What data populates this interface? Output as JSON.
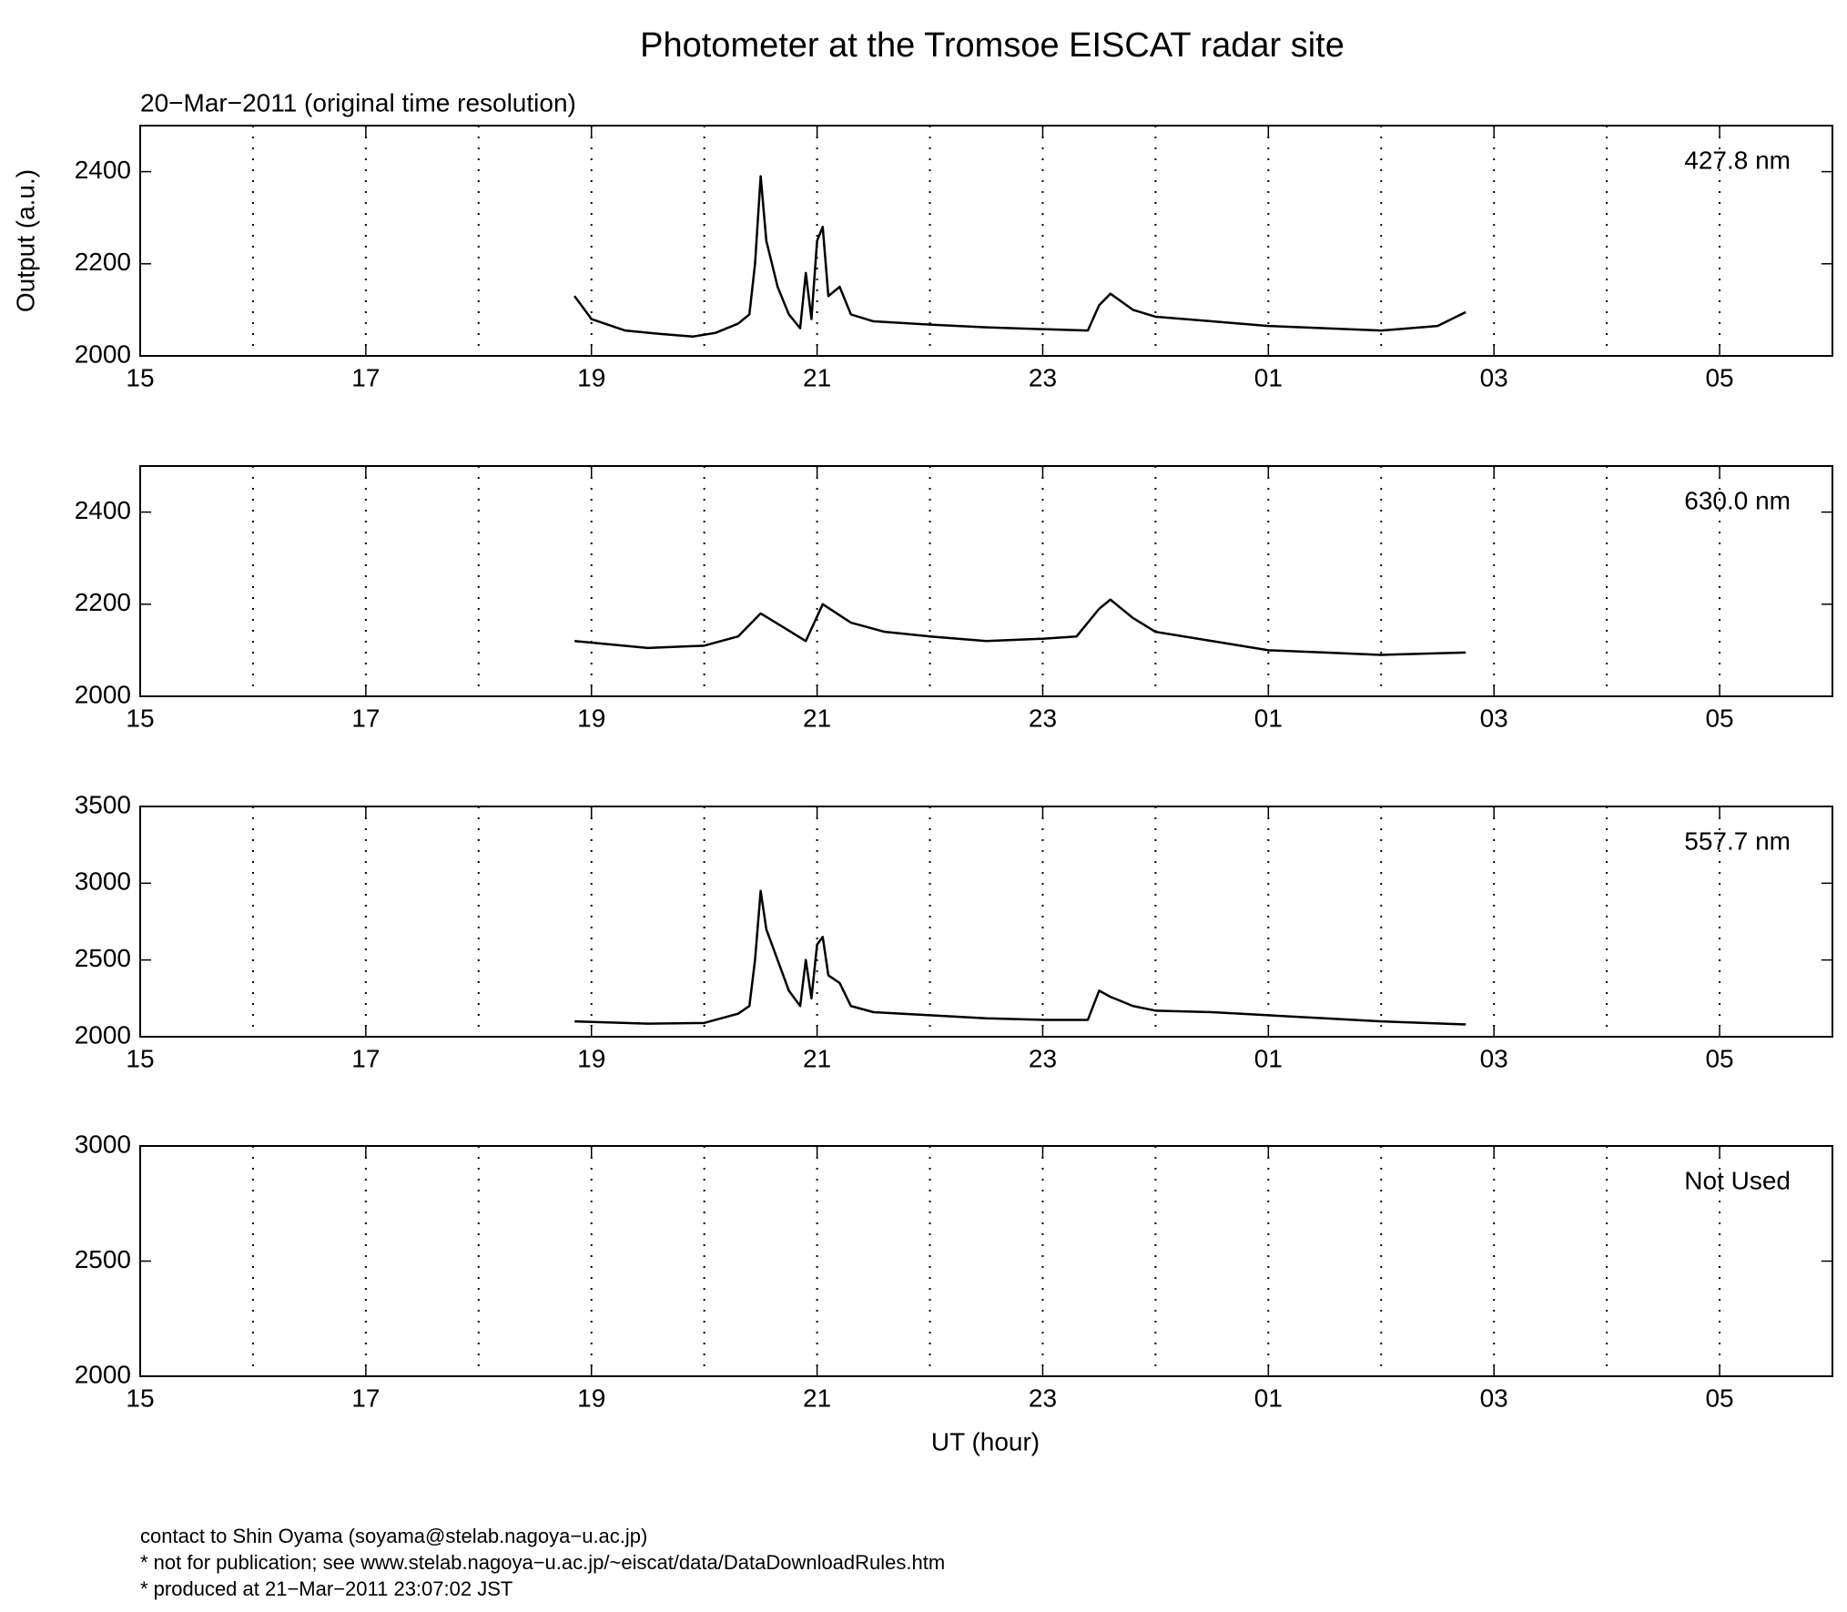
{
  "title": "Photometer at the Tromsoe EISCAT radar site",
  "subtitle": "20−Mar−2011 (original time resolution)",
  "footer": [
    "contact to Shin Oyama (soyama@stelab.nagoya−u.ac.jp)",
    "* not for publication; see www.stelab.nagoya−u.ac.jp/~eiscat/data/DataDownloadRules.htm",
    "* produced at 21−Mar−2011 23:07:02 JST"
  ],
  "chart_data": [
    {
      "type": "line",
      "ylabel": "Output (a.u.)",
      "annotation": "427.8 nm",
      "xlim": [
        15,
        30
      ],
      "xticks": [
        15,
        17,
        19,
        21,
        23,
        {
          "value": 25,
          "label": "01"
        },
        {
          "value": 27,
          "label": "03"
        },
        {
          "value": 29,
          "label": "05"
        }
      ],
      "xgrid": [
        16,
        17,
        18,
        19,
        20,
        21,
        22,
        23,
        24,
        25,
        26,
        27,
        28,
        29
      ],
      "grid_style": "dotted",
      "ylim": [
        2000,
        2500
      ],
      "yticks": [
        2000,
        2200,
        2400
      ],
      "series": [
        {
          "color": "#000000",
          "x": [
            18.85,
            19.0,
            19.3,
            19.6,
            19.9,
            20.1,
            20.3,
            20.4,
            20.45,
            20.5,
            20.55,
            20.65,
            20.75,
            20.85,
            20.9,
            20.95,
            21.0,
            21.05,
            21.1,
            21.2,
            21.3,
            21.5,
            22.0,
            22.5,
            23.0,
            23.4,
            23.5,
            23.6,
            23.8,
            24.0,
            24.5,
            25.0,
            25.5,
            26.0,
            26.5,
            26.75
          ],
          "values": [
            2130,
            2080,
            2055,
            2048,
            2042,
            2050,
            2070,
            2090,
            2200,
            2390,
            2250,
            2150,
            2090,
            2060,
            2180,
            2080,
            2250,
            2280,
            2130,
            2150,
            2090,
            2075,
            2068,
            2062,
            2058,
            2055,
            2110,
            2135,
            2100,
            2085,
            2075,
            2065,
            2060,
            2055,
            2065,
            2095
          ]
        }
      ]
    },
    {
      "type": "line",
      "annotation": "630.0 nm",
      "xlim": [
        15,
        30
      ],
      "xticks": [
        15,
        17,
        19,
        21,
        23,
        {
          "value": 25,
          "label": "01"
        },
        {
          "value": 27,
          "label": "03"
        },
        {
          "value": 29,
          "label": "05"
        }
      ],
      "xgrid": [
        16,
        17,
        18,
        19,
        20,
        21,
        22,
        23,
        24,
        25,
        26,
        27,
        28,
        29
      ],
      "grid_style": "dotted",
      "ylim": [
        2000,
        2500
      ],
      "yticks": [
        2000,
        2200,
        2400
      ],
      "series": [
        {
          "color": "#000000",
          "x": [
            18.85,
            19.5,
            20.0,
            20.3,
            20.5,
            20.7,
            20.9,
            21.05,
            21.3,
            21.6,
            22.0,
            22.5,
            23.0,
            23.3,
            23.5,
            23.6,
            23.8,
            24.0,
            24.5,
            25.0,
            25.5,
            26.0,
            26.75
          ],
          "values": [
            2120,
            2105,
            2110,
            2130,
            2180,
            2150,
            2120,
            2200,
            2160,
            2140,
            2130,
            2120,
            2125,
            2130,
            2190,
            2210,
            2170,
            2140,
            2120,
            2100,
            2095,
            2090,
            2095
          ]
        }
      ]
    },
    {
      "type": "line",
      "annotation": "557.7 nm",
      "xlim": [
        15,
        30
      ],
      "xticks": [
        15,
        17,
        19,
        21,
        23,
        {
          "value": 25,
          "label": "01"
        },
        {
          "value": 27,
          "label": "03"
        },
        {
          "value": 29,
          "label": "05"
        }
      ],
      "xgrid": [
        16,
        17,
        18,
        19,
        20,
        21,
        22,
        23,
        24,
        25,
        26,
        27,
        28,
        29
      ],
      "grid_style": "dotted",
      "ylim": [
        2000,
        3500
      ],
      "yticks": [
        2000,
        2500,
        3000,
        3500
      ],
      "series": [
        {
          "color": "#000000",
          "x": [
            18.85,
            19.5,
            20.0,
            20.3,
            20.4,
            20.45,
            20.5,
            20.55,
            20.65,
            20.75,
            20.85,
            20.9,
            20.95,
            21.0,
            21.05,
            21.1,
            21.2,
            21.3,
            21.5,
            22.0,
            22.5,
            23.0,
            23.4,
            23.5,
            23.6,
            23.8,
            24.0,
            24.5,
            25.0,
            25.5,
            26.0,
            26.75
          ],
          "values": [
            2100,
            2085,
            2090,
            2150,
            2200,
            2500,
            2950,
            2700,
            2500,
            2300,
            2200,
            2500,
            2250,
            2600,
            2650,
            2400,
            2350,
            2200,
            2160,
            2140,
            2120,
            2110,
            2110,
            2300,
            2260,
            2200,
            2170,
            2160,
            2140,
            2120,
            2100,
            2080
          ]
        }
      ]
    },
    {
      "type": "line",
      "annotation": "Not Used",
      "xlabel": "UT (hour)",
      "xlim": [
        15,
        30
      ],
      "xticks": [
        15,
        17,
        19,
        21,
        23,
        {
          "value": 25,
          "label": "01"
        },
        {
          "value": 27,
          "label": "03"
        },
        {
          "value": 29,
          "label": "05"
        }
      ],
      "xgrid": [
        16,
        17,
        18,
        19,
        20,
        21,
        22,
        23,
        24,
        25,
        26,
        27,
        28,
        29
      ],
      "grid_style": "dotted",
      "ylim": [
        2000,
        3000
      ],
      "yticks": [
        2000,
        2500,
        3000
      ],
      "series": []
    }
  ]
}
